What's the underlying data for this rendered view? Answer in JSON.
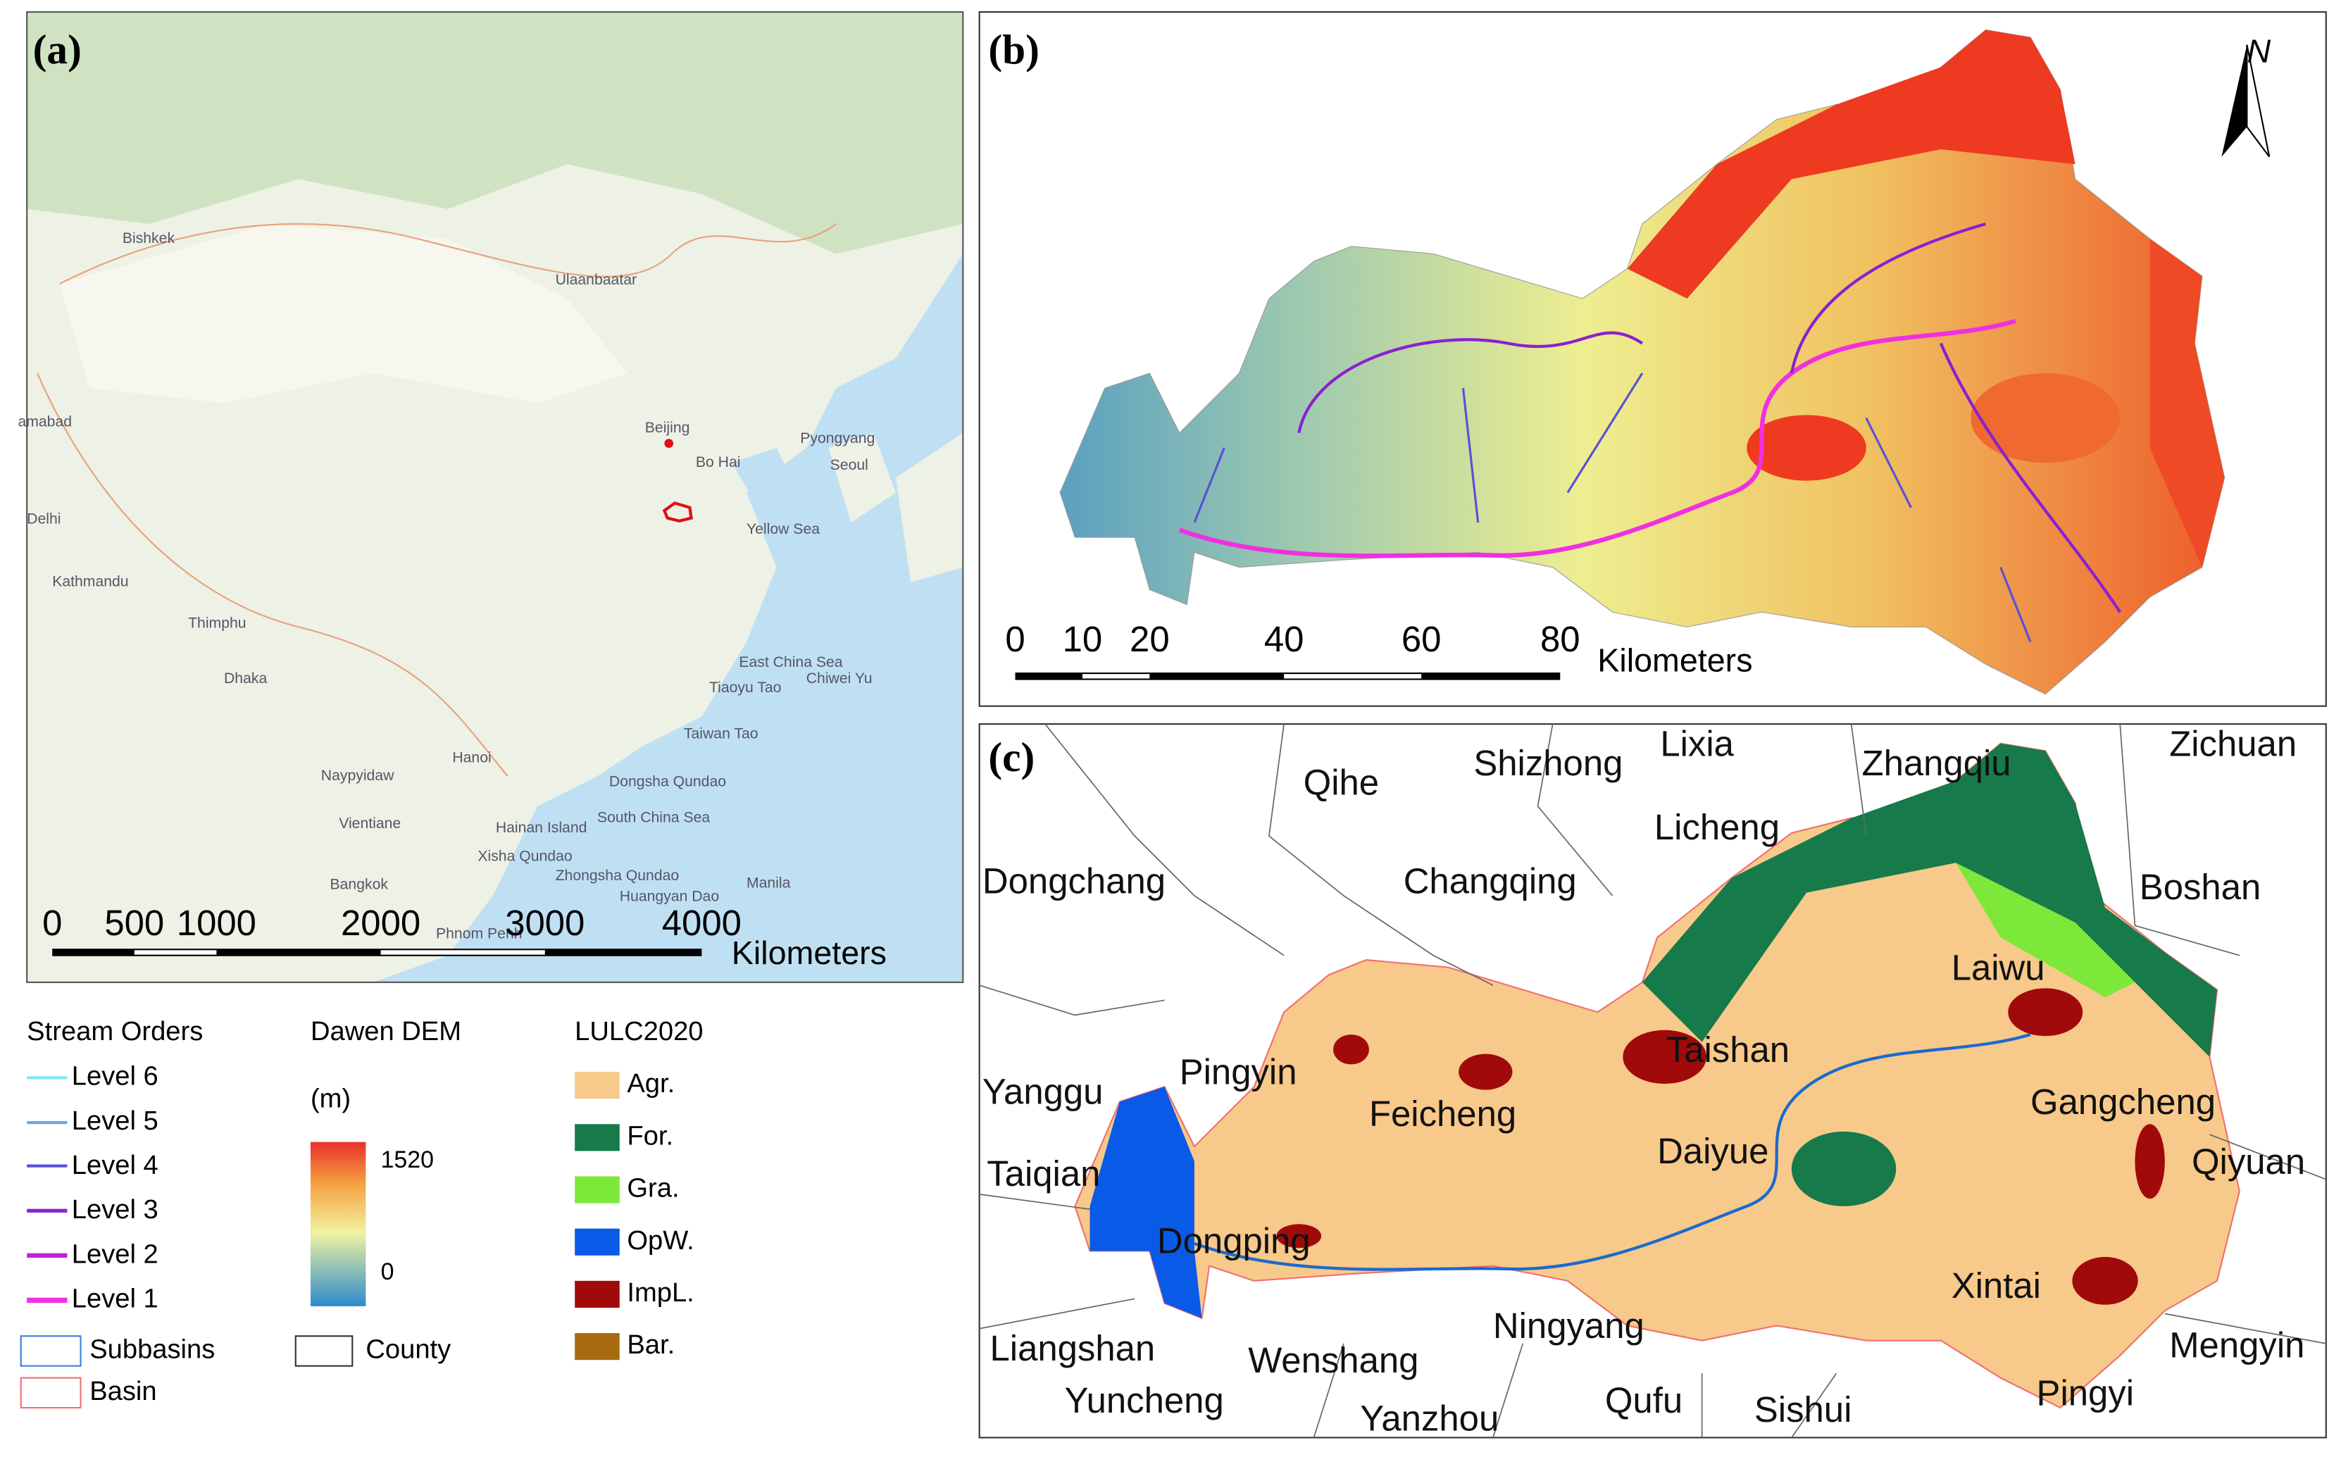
{
  "panels": {
    "a": {
      "label": "(a)",
      "places": [
        "Bishkek",
        "Ulaanbaatar",
        "Beijing",
        "Bo Hai",
        "Pyongyang",
        "Seoul",
        "Yellow Sea",
        "amabad",
        "Delhi",
        "Kathmandu",
        "Thimphu",
        "Dhaka",
        "East China Sea",
        "Tiaoyu Tao",
        "Chiwei Yu",
        "Taiwan Tao",
        "Naypyidaw",
        "Hanoi",
        "Dongsha Qundao",
        "Vientiane",
        "Hainan Island",
        "South China Sea",
        "Xisha Qundao",
        "Zhongsha Qundao",
        "Bangkok",
        "Huangyan Dao",
        "Manila",
        "Phnom Penh"
      ],
      "scale_bar": {
        "ticks": [
          "0",
          "500",
          "1000",
          "2000",
          "3000",
          "4000"
        ],
        "unit": "Kilometers"
      }
    },
    "b": {
      "label": "(b)",
      "north": "N",
      "scale_bar": {
        "ticks": [
          "0",
          "10",
          "20",
          "40",
          "60",
          "80"
        ],
        "unit": "Kilometers"
      }
    },
    "c": {
      "label": "(c)",
      "places": [
        "Qihe",
        "Shizhong",
        "Lixia",
        "Zhangqiu",
        "Zichuan",
        "Licheng",
        "Dongchang",
        "Changqing",
        "Boshan",
        "Laiwu",
        "Taishan",
        "Pingyin",
        "Yanggu",
        "Feicheng",
        "Gangcheng",
        "Daiyue",
        "Qiyuan",
        "Taiqian",
        "Dongping",
        "Xintai",
        "Ningyang",
        "Liangshan",
        "Wenshang",
        "Mengyin",
        "Yuncheng",
        "Yanzhou",
        "Qufu",
        "Sishui",
        "Pingyi"
      ]
    }
  },
  "legend": {
    "stream_orders": {
      "title": "Stream Orders",
      "items": [
        {
          "label": "Level 6",
          "color": "#7fe8f5"
        },
        {
          "label": "Level 5",
          "color": "#6aa8e8"
        },
        {
          "label": "Level 4",
          "color": "#5a50d8"
        },
        {
          "label": "Level 3",
          "color": "#8a20d0"
        },
        {
          "label": "Level 2",
          "color": "#c020d8"
        },
        {
          "label": "Level 1",
          "color": "#f030e0"
        }
      ]
    },
    "boundaries": [
      {
        "label": "Subbasins",
        "color": "#3a7ee0"
      },
      {
        "label": "Basin",
        "color": "#f07070"
      }
    ],
    "dem": {
      "title": "Dawen DEM",
      "unit": "(m)",
      "max": "1520",
      "min": "0"
    },
    "county": {
      "label": "County",
      "color": "#333333"
    },
    "lulc": {
      "title": "LULC2020",
      "items": [
        {
          "label": "Agr.",
          "color": "#f7c98a"
        },
        {
          "label": "For.",
          "color": "#167a4a"
        },
        {
          "label": "Gra.",
          "color": "#7ee83a"
        },
        {
          "label": "OpW.",
          "color": "#0a5ae8"
        },
        {
          "label": "ImpL.",
          "color": "#a00a0a"
        },
        {
          "label": "Bar.",
          "color": "#a86a10"
        }
      ]
    }
  }
}
